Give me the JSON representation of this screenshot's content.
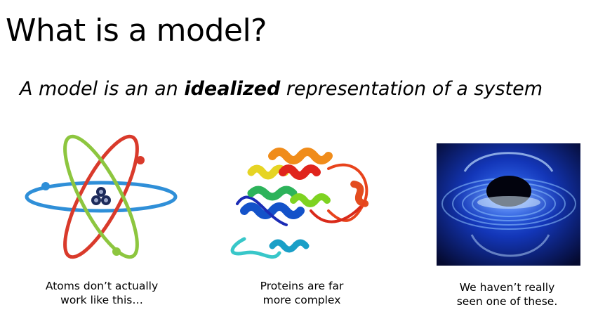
{
  "slide": {
    "title": "What is a model?",
    "subtitle": {
      "before": "A model is an an ",
      "emphasis": "idealized",
      "after": " representation of a system"
    }
  },
  "panels": [
    {
      "image": "atom-diagram",
      "caption": "Atoms don’t actually\nwork like this…"
    },
    {
      "image": "protein-ribbon-structure",
      "caption": "Proteins are far\nmore complex"
    },
    {
      "image": "black-hole-illustration",
      "caption": "We haven’t really\nseen one of these."
    }
  ],
  "colors": {
    "orbit_red": "#d93a2b",
    "orbit_green": "#8dc63f",
    "orbit_blue": "#2f8fd8",
    "nucleus": "#1c2a5a",
    "bh_blue": "#1a4fd8",
    "bh_dark": "#050a30"
  }
}
